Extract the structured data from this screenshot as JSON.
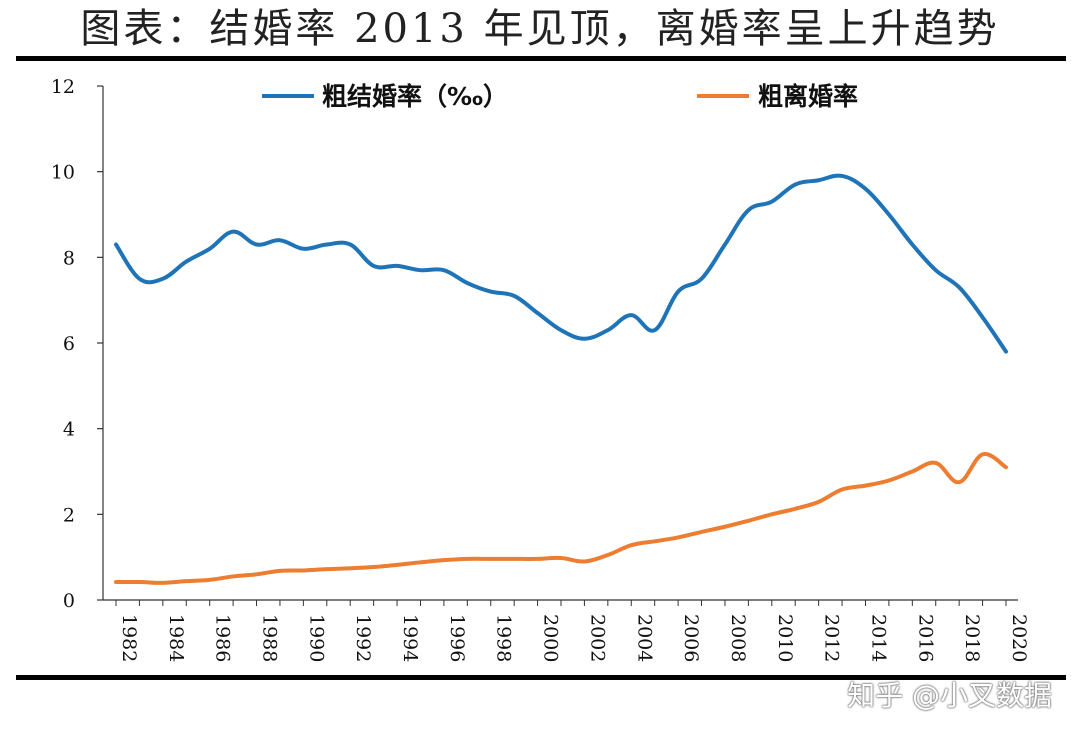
{
  "title": "图表：结婚率 2013 年见顶，离婚率呈上升趋势",
  "watermark": "知乎 @小叉数据",
  "chart_data": {
    "type": "line",
    "title": "图表：结婚率 2013 年见顶，离婚率呈上升趋势",
    "xlabel": "",
    "ylabel": "",
    "ylim": [
      0,
      12
    ],
    "yticks": [
      0,
      2,
      4,
      6,
      8,
      10,
      12
    ],
    "x": [
      1982,
      1983,
      1984,
      1985,
      1986,
      1987,
      1988,
      1989,
      1990,
      1991,
      1992,
      1993,
      1994,
      1995,
      1996,
      1997,
      1998,
      1999,
      2000,
      2001,
      2002,
      2003,
      2004,
      2005,
      2006,
      2007,
      2008,
      2009,
      2010,
      2011,
      2012,
      2013,
      2014,
      2015,
      2016,
      2017,
      2018,
      2019,
      2020
    ],
    "xticks": [
      1982,
      1984,
      1986,
      1988,
      1990,
      1992,
      1994,
      1996,
      1998,
      2000,
      2002,
      2004,
      2006,
      2008,
      2010,
      2012,
      2014,
      2016,
      2018,
      2020
    ],
    "grid": false,
    "legend_position": "top",
    "series": [
      {
        "name": "粗结婚率（‰）",
        "color": "#1f74b8",
        "values": [
          8.3,
          7.5,
          7.5,
          7.9,
          8.2,
          8.6,
          8.3,
          8.4,
          8.2,
          8.3,
          8.3,
          7.8,
          7.8,
          7.7,
          7.7,
          7.4,
          7.2,
          7.1,
          6.7,
          6.3,
          6.1,
          6.3,
          6.65,
          6.3,
          7.2,
          7.5,
          8.3,
          9.1,
          9.3,
          9.7,
          9.8,
          9.9,
          9.6,
          9.0,
          8.3,
          7.7,
          7.3,
          6.6,
          5.8
        ]
      },
      {
        "name": "粗离婚率",
        "color": "#ed7d31",
        "values": [
          0.42,
          0.42,
          0.4,
          0.44,
          0.47,
          0.55,
          0.6,
          0.68,
          0.69,
          0.72,
          0.74,
          0.77,
          0.82,
          0.88,
          0.93,
          0.96,
          0.96,
          0.96,
          0.96,
          0.98,
          0.9,
          1.05,
          1.28,
          1.37,
          1.46,
          1.59,
          1.71,
          1.85,
          2.0,
          2.13,
          2.29,
          2.58,
          2.67,
          2.79,
          3.0,
          3.2,
          2.75,
          3.4,
          3.1
        ]
      }
    ]
  }
}
